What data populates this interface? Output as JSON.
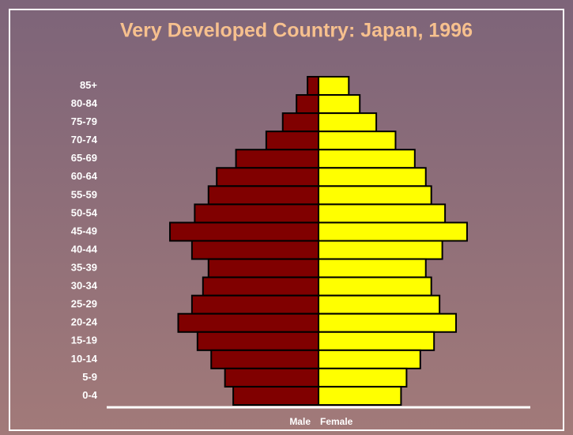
{
  "chart_data": {
    "type": "pyramid",
    "title": "Very Developed Country: Japan, 1996",
    "categories": [
      "85+",
      "80-84",
      "75-79",
      "70-74",
      "65-69",
      "60-64",
      "55-59",
      "50-54",
      "45-49",
      "40-44",
      "35-39",
      "30-34",
      "25-29",
      "20-24",
      "15-19",
      "10-14",
      "5-9",
      "0-4"
    ],
    "series": [
      {
        "name": "Male",
        "color": "#800000",
        "values": [
          0.4,
          0.8,
          1.3,
          1.9,
          3.0,
          3.7,
          4.0,
          4.5,
          5.4,
          4.6,
          4.0,
          4.2,
          4.6,
          5.1,
          4.4,
          3.9,
          3.4,
          3.1
        ]
      },
      {
        "name": "Female",
        "color": "#ffff00",
        "values": [
          1.1,
          1.5,
          2.1,
          2.8,
          3.5,
          3.9,
          4.1,
          4.6,
          5.4,
          4.5,
          3.9,
          4.1,
          4.4,
          5.0,
          4.2,
          3.7,
          3.2,
          3.0
        ]
      }
    ],
    "xlim": [
      -7.7,
      7.7
    ]
  }
}
